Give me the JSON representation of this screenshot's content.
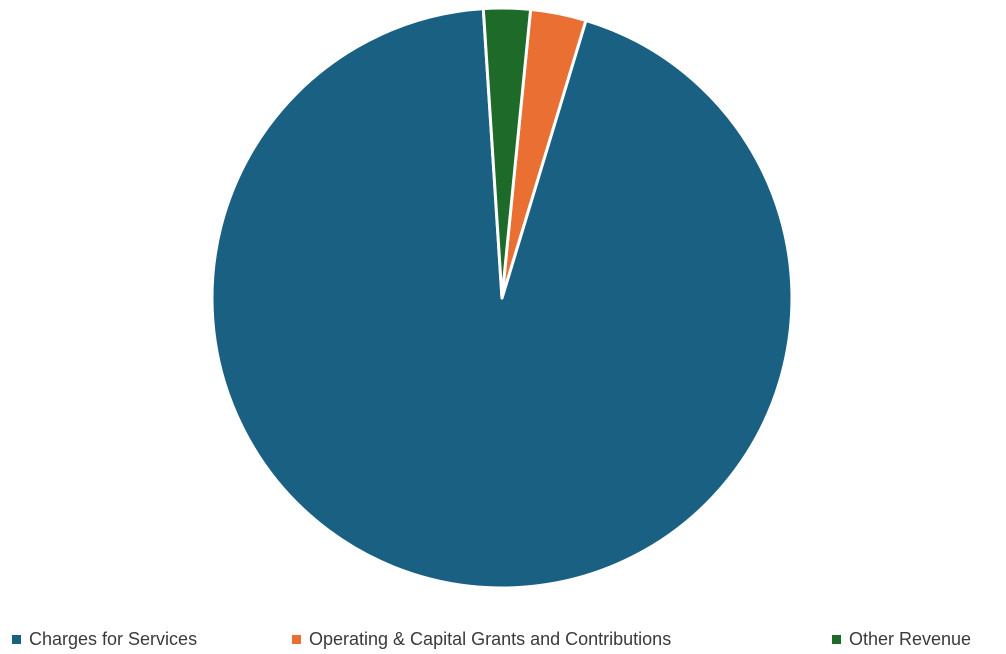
{
  "chart_data": {
    "type": "pie",
    "categories": [
      "Charges for Services",
      "Operating & Capital Grants and Contributions",
      "Other Revenue"
    ],
    "values": [
      94.3,
      3.1,
      2.6
    ],
    "colors": [
      "#1a6083",
      "#e96f33",
      "#1d6a29"
    ],
    "legend_position": "bottom",
    "start_angle_deg": 93.7,
    "direction": "counterclockwise"
  }
}
